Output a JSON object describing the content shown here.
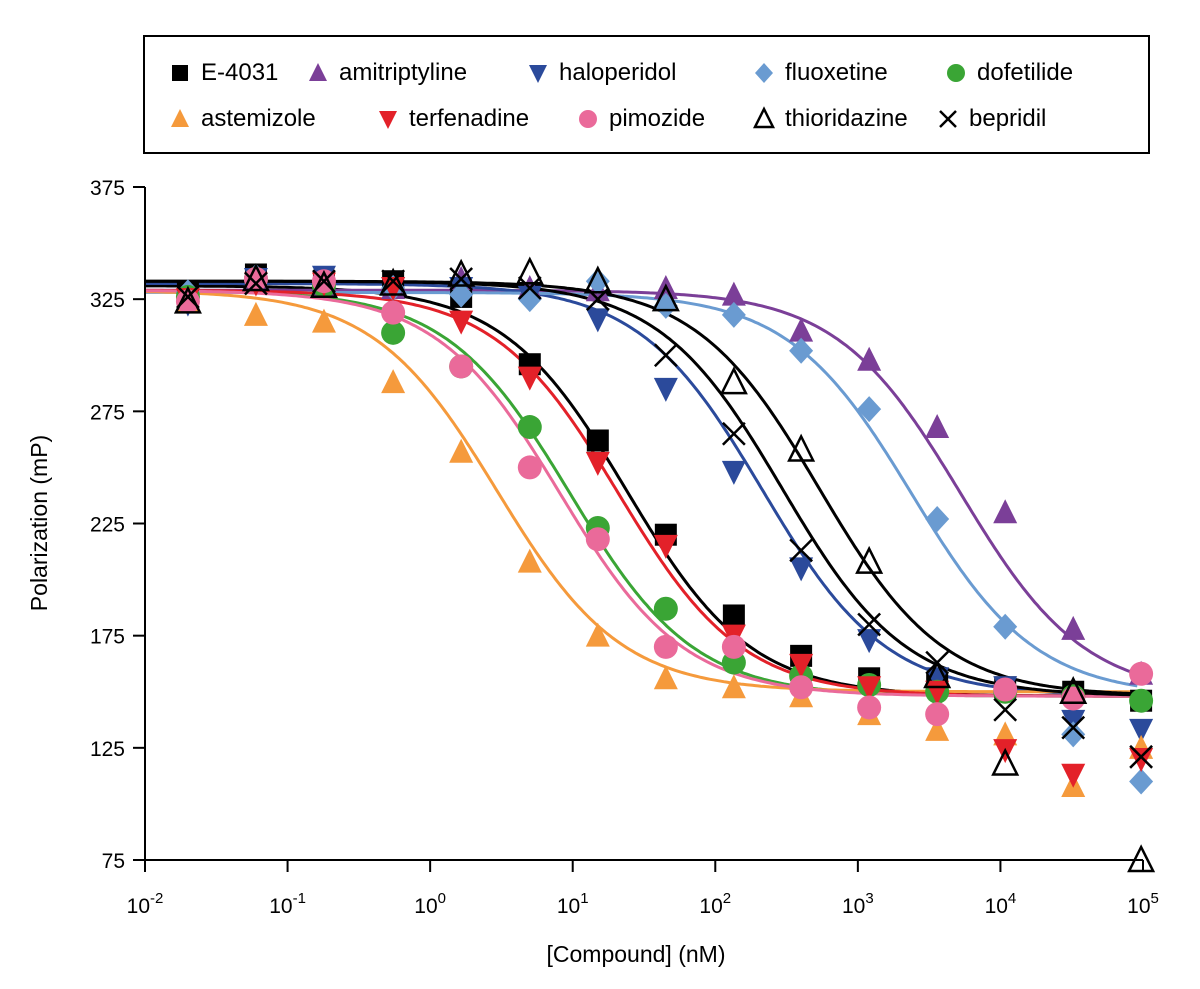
{
  "chart_data": {
    "type": "scatter",
    "xlabel": "[Compound] (nM)",
    "ylabel": "Polarization (mP)",
    "xscale": "log",
    "xlim_log10": [
      -2,
      5
    ],
    "ylim": [
      75,
      375
    ],
    "y_ticks": [
      75,
      125,
      175,
      225,
      275,
      325,
      375
    ],
    "x_ticks": [
      {
        "base": "10",
        "exp": "-2"
      },
      {
        "base": "10",
        "exp": "-1"
      },
      {
        "base": "10",
        "exp": "0"
      },
      {
        "base": "10",
        "exp": "1"
      },
      {
        "base": "10",
        "exp": "2"
      },
      {
        "base": "10",
        "exp": "3"
      },
      {
        "base": "10",
        "exp": "4"
      },
      {
        "base": "10",
        "exp": "5"
      }
    ],
    "legend_placement": "top",
    "x": [
      0.02,
      0.06,
      0.18,
      0.55,
      1.65,
      5,
      15,
      45,
      135,
      400,
      1200,
      3600,
      10800,
      32400,
      97000
    ],
    "series": [
      {
        "name": "E-4031",
        "marker": "square",
        "color": "#000000",
        "values": [
          328,
          336,
          333,
          333,
          326,
          296,
          262,
          220,
          184,
          166,
          156,
          154,
          152,
          150,
          146
        ],
        "fit": {
          "top": 331,
          "bottom": 148,
          "logIC50": 1.38,
          "hill": 1.0
        }
      },
      {
        "name": "amitriptyline",
        "marker": "triangle-up",
        "color": "#7b3f98",
        "values": [
          325,
          334,
          331,
          330,
          334,
          330,
          329,
          330,
          327,
          311,
          298,
          268,
          230,
          178,
          158
        ],
        "fit": {
          "top": 329,
          "bottom": 148,
          "logIC50": 3.72,
          "hill": 1.0
        }
      },
      {
        "name": "haloperidol",
        "marker": "triangle-down",
        "color": "#2b4a9b",
        "values": [
          323,
          334,
          335,
          330,
          330,
          326,
          316,
          285,
          248,
          205,
          173,
          156,
          152,
          137,
          133
        ],
        "fit": {
          "top": 332,
          "bottom": 148,
          "logIC50": 2.33,
          "hill": 1.0
        }
      },
      {
        "name": "fluoxetine",
        "marker": "diamond",
        "color": "#6a9bd1",
        "values": [
          328,
          335,
          331,
          330,
          327,
          325,
          333,
          322,
          318,
          302,
          276,
          227,
          179,
          131,
          110
        ],
        "fit": {
          "top": 328,
          "bottom": 148,
          "logIC50": 3.38,
          "hill": 1.0
        }
      },
      {
        "name": "dofetilide",
        "marker": "circle",
        "color": "#3aa535",
        "values": [
          326,
          334,
          331,
          310,
          295,
          268,
          223,
          187,
          163,
          157,
          153,
          150,
          150,
          148,
          146
        ],
        "fit": {
          "top": 329,
          "bottom": 148,
          "logIC50": 0.98,
          "hill": 1.0
        }
      },
      {
        "name": "astemizole",
        "marker": "triangle-up",
        "color": "#f59a3c",
        "values": [
          324,
          318,
          315,
          288,
          257,
          208,
          175,
          156,
          152,
          148,
          140,
          133,
          131,
          108,
          125
        ],
        "fit": {
          "top": 329,
          "bottom": 150,
          "logIC50": 0.47,
          "hill": 1.0
        }
      },
      {
        "name": "terfenadine",
        "marker": "triangle-down",
        "color": "#e32129",
        "values": [
          325,
          332,
          332,
          330,
          315,
          290,
          252,
          215,
          175,
          162,
          152,
          150,
          124,
          113,
          120
        ],
        "fit": {
          "top": 329,
          "bottom": 148,
          "logIC50": 1.32,
          "hill": 1.0
        }
      },
      {
        "name": "pimozide",
        "marker": "circle",
        "color": "#ea6a9a",
        "values": [
          324,
          334,
          333,
          319,
          295,
          250,
          218,
          170,
          170,
          152,
          143,
          140,
          151,
          147,
          158
        ],
        "fit": {
          "top": 329,
          "bottom": 148,
          "logIC50": 0.91,
          "hill": 1.0
        }
      },
      {
        "name": "thioridazine",
        "marker": "triangle-up-open",
        "color": "#000000",
        "values": [
          324,
          334,
          331,
          332,
          336,
          337,
          333,
          325,
          288,
          258,
          208,
          157,
          118,
          150,
          75
        ],
        "fit": {
          "top": 333,
          "bottom": 148,
          "logIC50": 2.73,
          "hill": 1.0
        }
      },
      {
        "name": "bepridil",
        "marker": "x",
        "color": "#000000",
        "values": [
          326,
          332,
          333,
          333,
          334,
          330,
          325,
          300,
          265,
          213,
          180,
          163,
          142,
          134,
          121
        ],
        "fit": {
          "top": 333,
          "bottom": 148,
          "logIC50": 2.47,
          "hill": 1.0
        }
      }
    ]
  }
}
